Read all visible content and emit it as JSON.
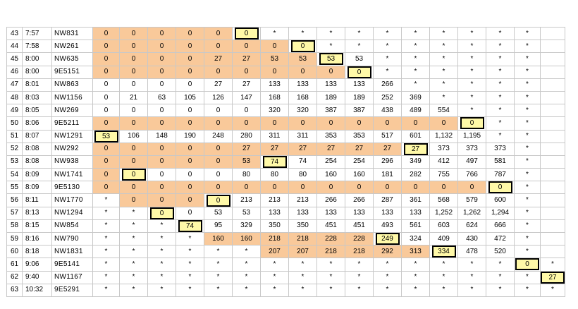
{
  "colors": {
    "highlight": "#f9c99a",
    "boxed_fill": "#fff9a8",
    "grid_line": "#c8c8c8"
  },
  "rows": [
    {
      "num": "43",
      "time": "7:57",
      "flight": "NW831",
      "cells": [
        "0",
        "0",
        "0",
        "0",
        "0",
        "0",
        "*",
        "*",
        "*",
        "*",
        "*",
        "*",
        "*",
        "*",
        "*",
        "*"
      ],
      "hl": [
        0,
        1,
        2,
        3,
        4
      ],
      "box": 5
    },
    {
      "num": "44",
      "time": "7:58",
      "flight": "NW261",
      "cells": [
        "0",
        "0",
        "0",
        "0",
        "0",
        "0",
        "0",
        "0",
        "*",
        "*",
        "*",
        "*",
        "*",
        "*",
        "*",
        "*"
      ],
      "hl": [
        0,
        1,
        2,
        3,
        4,
        5,
        6
      ],
      "box": 7
    },
    {
      "num": "45",
      "time": "8:00",
      "flight": "NW635",
      "cells": [
        "0",
        "0",
        "0",
        "0",
        "27",
        "27",
        "53",
        "53",
        "53",
        "53",
        "*",
        "*",
        "*",
        "*",
        "*",
        "*"
      ],
      "hl": [
        0,
        1,
        2,
        3,
        4,
        5,
        6,
        7
      ],
      "box": 8
    },
    {
      "num": "46",
      "time": "8:00",
      "flight": "9E5151",
      "cells": [
        "0",
        "0",
        "0",
        "0",
        "0",
        "0",
        "0",
        "0",
        "0",
        "0",
        "*",
        "*",
        "*",
        "*",
        "*",
        "*"
      ],
      "hl": [
        0,
        1,
        2,
        3,
        4,
        5,
        6,
        7,
        8
      ],
      "box": 9
    },
    {
      "num": "47",
      "time": "8:01",
      "flight": "NW863",
      "cells": [
        "0",
        "0",
        "0",
        "0",
        "27",
        "27",
        "133",
        "133",
        "133",
        "133",
        "266",
        "*",
        "*",
        "*",
        "*",
        "*"
      ],
      "hl": [],
      "box": null
    },
    {
      "num": "48",
      "time": "8:03",
      "flight": "NW1156",
      "cells": [
        "0",
        "21",
        "63",
        "105",
        "126",
        "147",
        "168",
        "168",
        "189",
        "189",
        "252",
        "369",
        "*",
        "*",
        "*",
        "*"
      ],
      "hl": [],
      "box": null
    },
    {
      "num": "49",
      "time": "8:05",
      "flight": "NW269",
      "cells": [
        "0",
        "0",
        "0",
        "0",
        "0",
        "0",
        "320",
        "320",
        "387",
        "387",
        "438",
        "489",
        "554",
        "*",
        "*",
        "*"
      ],
      "hl": [],
      "box": null
    },
    {
      "num": "50",
      "time": "8:06",
      "flight": "9E5211",
      "cells": [
        "0",
        "0",
        "0",
        "0",
        "0",
        "0",
        "0",
        "0",
        "0",
        "0",
        "0",
        "0",
        "0",
        "0",
        "*",
        "*"
      ],
      "hl": [
        0,
        1,
        2,
        3,
        4,
        5,
        6,
        7,
        8,
        9,
        10,
        11,
        12
      ],
      "box": 13
    },
    {
      "num": "51",
      "time": "8:07",
      "flight": "NW1291",
      "cells": [
        "53",
        "106",
        "148",
        "190",
        "248",
        "280",
        "311",
        "311",
        "353",
        "353",
        "517",
        "601",
        "1,132",
        "1,195",
        "*",
        "*"
      ],
      "hl": [],
      "box": 0
    },
    {
      "num": "52",
      "time": "8:08",
      "flight": "NW292",
      "cells": [
        "0",
        "0",
        "0",
        "0",
        "0",
        "27",
        "27",
        "27",
        "27",
        "27",
        "27",
        "27",
        "373",
        "373",
        "373",
        "*"
      ],
      "hl": [
        0,
        1,
        2,
        3,
        4,
        5,
        6,
        7,
        8,
        9,
        10
      ],
      "box": 11
    },
    {
      "num": "53",
      "time": "8:08",
      "flight": "NW938",
      "cells": [
        "0",
        "0",
        "0",
        "0",
        "0",
        "53",
        "74",
        "74",
        "254",
        "254",
        "296",
        "349",
        "412",
        "497",
        "581",
        "*"
      ],
      "hl": [
        0,
        1,
        2,
        3,
        4,
        5
      ],
      "box": 6
    },
    {
      "num": "54",
      "time": "8:09",
      "flight": "NW1741",
      "cells": [
        "0",
        "0",
        "0",
        "0",
        "0",
        "80",
        "80",
        "80",
        "160",
        "160",
        "181",
        "282",
        "755",
        "766",
        "787",
        "*"
      ],
      "hl": [
        0
      ],
      "box": 1
    },
    {
      "num": "55",
      "time": "8:09",
      "flight": "9E5130",
      "cells": [
        "0",
        "0",
        "0",
        "0",
        "0",
        "0",
        "0",
        "0",
        "0",
        "0",
        "0",
        "0",
        "0",
        "0",
        "0",
        "*"
      ],
      "hl": [
        0,
        1,
        2,
        3,
        4,
        5,
        6,
        7,
        8,
        9,
        10,
        11,
        12,
        13
      ],
      "box": 14
    },
    {
      "num": "56",
      "time": "8:11",
      "flight": "NW1770",
      "cells": [
        "*",
        "0",
        "0",
        "0",
        "0",
        "213",
        "213",
        "213",
        "266",
        "266",
        "287",
        "361",
        "568",
        "579",
        "600",
        "*"
      ],
      "hl": [
        1,
        2,
        3
      ],
      "box": 4
    },
    {
      "num": "57",
      "time": "8:13",
      "flight": "NW1294",
      "cells": [
        "*",
        "*",
        "0",
        "0",
        "53",
        "53",
        "133",
        "133",
        "133",
        "133",
        "133",
        "133",
        "1,252",
        "1,262",
        "1,294",
        "*"
      ],
      "hl": [],
      "box": 2
    },
    {
      "num": "58",
      "time": "8:15",
      "flight": "NW854",
      "cells": [
        "*",
        "*",
        "*",
        "74",
        "95",
        "329",
        "350",
        "350",
        "451",
        "451",
        "493",
        "561",
        "603",
        "624",
        "666",
        "*"
      ],
      "hl": [],
      "box": 3
    },
    {
      "num": "59",
      "time": "8:16",
      "flight": "NW790",
      "cells": [
        "*",
        "*",
        "*",
        "*",
        "160",
        "160",
        "218",
        "218",
        "228",
        "228",
        "249",
        "324",
        "409",
        "430",
        "472",
        "*"
      ],
      "hl": [
        4,
        5,
        6,
        7,
        8,
        9
      ],
      "box": 10
    },
    {
      "num": "60",
      "time": "8:18",
      "flight": "NW1831",
      "cells": [
        "*",
        "*",
        "*",
        "*",
        "*",
        "*",
        "207",
        "207",
        "218",
        "218",
        "292",
        "313",
        "334",
        "478",
        "520",
        "*"
      ],
      "hl": [
        6,
        7,
        8,
        9,
        10,
        11
      ],
      "box": 12
    },
    {
      "num": "61",
      "time": "9:06",
      "flight": "9E5141",
      "cells": [
        "*",
        "*",
        "*",
        "*",
        "*",
        "*",
        "*",
        "*",
        "*",
        "*",
        "*",
        "*",
        "*",
        "*",
        "*",
        "0",
        "*"
      ],
      "hl": [],
      "box": 15
    },
    {
      "num": "62",
      "time": "9:40",
      "flight": "NW1167",
      "cells": [
        "*",
        "*",
        "*",
        "*",
        "*",
        "*",
        "*",
        "*",
        "*",
        "*",
        "*",
        "*",
        "*",
        "*",
        "*",
        "*",
        "27"
      ],
      "hl": [],
      "box": 16
    },
    {
      "num": "63",
      "time": "10:32",
      "flight": "9E5291",
      "cells": [
        "*",
        "*",
        "*",
        "*",
        "*",
        "*",
        "*",
        "*",
        "*",
        "*",
        "*",
        "*",
        "*",
        "*",
        "*",
        "*",
        "*"
      ],
      "hl": [],
      "box": null
    }
  ]
}
